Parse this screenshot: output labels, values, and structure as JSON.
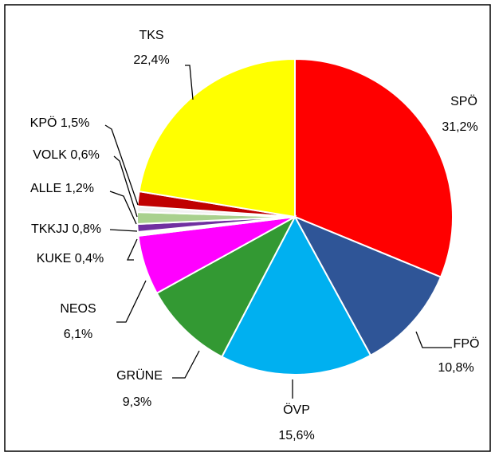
{
  "chart_data": {
    "type": "pie",
    "categories": [
      "SPÖ",
      "FPÖ",
      "ÖVP",
      "GRÜNE",
      "NEOS",
      "KUKE",
      "TKKJJ",
      "ALLE",
      "VOLK",
      "KPÖ",
      "TKS"
    ],
    "values": [
      31.2,
      10.8,
      15.6,
      9.3,
      6.1,
      0.4,
      0.8,
      1.2,
      0.6,
      1.5,
      22.4
    ],
    "value_labels": [
      "31,2%",
      "10,8%",
      "15,6%",
      "9,3%",
      "6,1%",
      "0,4%",
      "0,8%",
      "1,2%",
      "0,6%",
      "1,5%",
      "22,4%"
    ],
    "colors": [
      "#ff0000",
      "#2f5597",
      "#00b0f0",
      "#339933",
      "#ff00ff",
      "#ffffff",
      "#7030a0",
      "#a9d18e",
      "#f2f2f2",
      "#c00000",
      "#ffff00"
    ]
  }
}
